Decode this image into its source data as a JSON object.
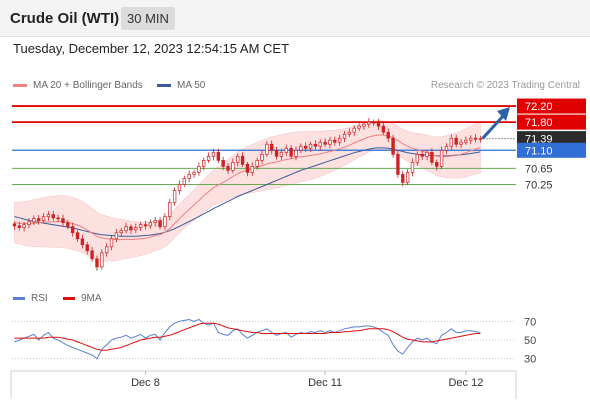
{
  "header": {
    "title": "Crude Oil (WTI)",
    "timeframe": "30 MIN"
  },
  "datetime": "Tuesday, December 12, 2023 12:54:15 AM CET",
  "legend": {
    "ma20_label": "MA 20 + Bollinger Bands",
    "ma50_label": "MA 50",
    "credit": "Research © 2023 Trading Central",
    "rsi_label": "RSI",
    "rsi_ma_label": "9MA"
  },
  "colors": {
    "ma20": "#f08080",
    "ma50": "#3a5c9a",
    "bollinger_fill": "#fde0e0",
    "resistance": "#e00000",
    "pivot": "#2f6fd6",
    "support": "#66aa55",
    "candle": "#cc2222",
    "last_price_bg": "#2b2b2b",
    "arrow": "#2b5fa8",
    "rsi": "#5a7fd6",
    "rsi_ma": "#dd1111"
  },
  "chart_data": [
    {
      "type": "candlestick",
      "title": "Crude Oil (WTI) 30 MIN",
      "x_ticks": [
        "Dec 8",
        "Dec 11",
        "Dec 12"
      ],
      "ylim": [
        67.8,
        72.4
      ],
      "levels": [
        {
          "value": 72.2,
          "label": "72.20",
          "kind": "resistance"
        },
        {
          "value": 71.8,
          "label": "71.80",
          "kind": "resistance"
        },
        {
          "value": 71.39,
          "label": "71.39",
          "kind": "last"
        },
        {
          "value": 71.1,
          "label": "71.10",
          "kind": "pivot"
        },
        {
          "value": 70.65,
          "label": "70.65",
          "kind": "support"
        },
        {
          "value": 70.25,
          "label": "70.25",
          "kind": "support"
        }
      ],
      "closes": [
        69.22,
        69.18,
        69.25,
        69.32,
        69.4,
        69.35,
        69.45,
        69.5,
        69.42,
        69.4,
        69.3,
        69.2,
        69.05,
        68.9,
        68.75,
        68.6,
        68.4,
        68.2,
        68.55,
        68.7,
        68.9,
        69.05,
        69.1,
        69.2,
        69.12,
        69.18,
        69.25,
        69.22,
        69.3,
        69.35,
        69.2,
        69.45,
        69.8,
        70.1,
        70.25,
        70.4,
        70.5,
        70.55,
        70.7,
        70.85,
        70.95,
        71.05,
        70.85,
        70.7,
        70.6,
        70.8,
        70.95,
        70.75,
        70.55,
        70.7,
        70.85,
        71.0,
        71.25,
        71.1,
        70.95,
        71.05,
        71.15,
        70.95,
        71.1,
        71.2,
        71.15,
        71.25,
        71.2,
        71.3,
        71.25,
        71.35,
        71.3,
        71.4,
        71.5,
        71.55,
        71.65,
        71.7,
        71.75,
        71.8,
        71.78,
        71.7,
        71.55,
        71.4,
        71.0,
        70.5,
        70.3,
        70.55,
        70.8,
        71.0,
        70.95,
        71.05,
        70.8,
        70.7,
        71.1,
        71.2,
        71.4,
        71.25,
        71.3,
        71.35,
        71.4,
        71.38,
        71.39
      ],
      "ma20": [
        69.3,
        69.29,
        69.28,
        69.28,
        69.29,
        69.3,
        69.31,
        69.32,
        69.32,
        69.33,
        69.33,
        69.31,
        69.28,
        69.24,
        69.19,
        69.12,
        69.04,
        68.96,
        68.92,
        68.9,
        68.89,
        68.88,
        68.88,
        68.89,
        68.88,
        68.89,
        68.9,
        68.91,
        68.94,
        68.98,
        69.0,
        69.06,
        69.15,
        69.28,
        69.4,
        69.52,
        69.63,
        69.74,
        69.85,
        69.97,
        70.07,
        70.17,
        70.24,
        70.3,
        70.37,
        70.45,
        70.52,
        70.57,
        70.61,
        70.65,
        70.68,
        70.72,
        70.76,
        70.79,
        70.81,
        70.84,
        70.87,
        70.89,
        70.92,
        70.94,
        70.95,
        70.97,
        70.99,
        71.01,
        71.04,
        71.07,
        71.1,
        71.14,
        71.18,
        71.23,
        71.28,
        71.33,
        71.38,
        71.43,
        71.46,
        71.48,
        71.48,
        71.46,
        71.41,
        71.34,
        71.26,
        71.2,
        71.15,
        71.12,
        71.08,
        71.04,
        70.99,
        70.95,
        70.94,
        70.94,
        70.96,
        70.97,
        71.0,
        71.04,
        71.09,
        71.13,
        71.17
      ],
      "ma50": [
        69.45,
        69.42,
        69.39,
        69.36,
        69.33,
        69.31,
        69.29,
        69.27,
        69.25,
        69.23,
        69.21,
        69.19,
        69.17,
        69.14,
        69.11,
        69.08,
        69.05,
        69.02,
        69.0,
        68.99,
        68.98,
        68.97,
        68.96,
        68.96,
        68.96,
        68.96,
        68.97,
        68.98,
        68.99,
        69.01,
        69.03,
        69.06,
        69.1,
        69.15,
        69.21,
        69.27,
        69.33,
        69.39,
        69.45,
        69.52,
        69.58,
        69.65,
        69.71,
        69.77,
        69.83,
        69.89,
        69.95,
        70.0,
        70.05,
        70.1,
        70.15,
        70.2,
        70.25,
        70.3,
        70.35,
        70.4,
        70.45,
        70.5,
        70.55,
        70.6,
        70.64,
        70.68,
        70.72,
        70.76,
        70.8,
        70.84,
        70.88,
        70.92,
        70.96,
        71.0,
        71.04,
        71.07,
        71.1,
        71.13,
        71.15,
        71.16,
        71.16,
        71.15,
        71.13,
        71.1,
        71.07,
        71.04,
        71.02,
        71.0,
        70.99,
        70.98,
        70.97,
        70.96,
        70.96,
        70.96,
        70.97,
        70.98,
        70.99,
        71.0,
        71.02,
        71.04,
        71.06
      ],
      "arrow_target": 72.2
    },
    {
      "type": "line",
      "title": "RSI",
      "yticks": [
        70,
        50,
        30
      ],
      "ylim": [
        20,
        80
      ],
      "series": [
        {
          "name": "RSI",
          "values": [
            48,
            50,
            52,
            54,
            56,
            50,
            55,
            58,
            52,
            50,
            47,
            44,
            42,
            40,
            38,
            36,
            34,
            30,
            40,
            45,
            50,
            52,
            53,
            55,
            52,
            54,
            56,
            52,
            55,
            56,
            50,
            58,
            64,
            68,
            70,
            71,
            72,
            70,
            72,
            68,
            66,
            68,
            58,
            56,
            55,
            60,
            62,
            56,
            52,
            55,
            58,
            60,
            62,
            58,
            55,
            57,
            58,
            53,
            56,
            58,
            57,
            59,
            58,
            60,
            58,
            60,
            58,
            60,
            62,
            63,
            64,
            64,
            65,
            65,
            64,
            62,
            58,
            55,
            45,
            38,
            35,
            42,
            48,
            52,
            50,
            52,
            48,
            46,
            55,
            58,
            62,
            58,
            58,
            60,
            60,
            59,
            58
          ]
        },
        {
          "name": "9MA",
          "values": [
            52,
            52,
            52,
            52,
            52,
            52,
            52,
            53,
            53,
            53,
            52,
            51,
            50,
            48,
            46,
            44,
            42,
            40,
            39,
            39,
            40,
            41,
            42,
            44,
            46,
            48,
            50,
            51,
            52,
            53,
            53,
            54,
            55,
            57,
            59,
            61,
            63,
            65,
            67,
            68,
            68,
            68,
            67,
            65,
            63,
            62,
            61,
            60,
            59,
            58,
            58,
            57,
            57,
            57,
            57,
            57,
            57,
            57,
            57,
            57,
            57,
            57,
            57,
            57,
            57,
            58,
            58,
            58,
            59,
            59,
            60,
            60,
            61,
            62,
            62,
            62,
            62,
            61,
            59,
            56,
            53,
            51,
            50,
            49,
            48,
            48,
            48,
            49,
            50,
            51,
            52,
            53,
            54,
            55,
            56,
            57,
            57
          ]
        }
      ]
    }
  ]
}
